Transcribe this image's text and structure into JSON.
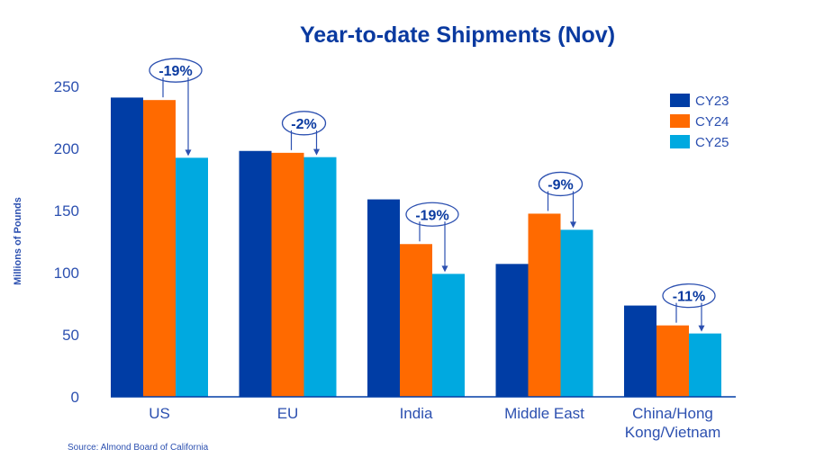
{
  "chart_data": {
    "type": "bar",
    "title": "Year-to-date Shipments (Nov)",
    "xlabel": "",
    "ylabel": "Millions of Pounds",
    "ylim": [
      0,
      250
    ],
    "yticks": [
      0,
      50,
      100,
      150,
      200,
      250
    ],
    "grid": false,
    "legend_position": "top-right",
    "categories": [
      "US",
      "EU",
      "India",
      "Middle East",
      "China/Hong Kong/Vietnam"
    ],
    "category_lines": [
      [
        "US"
      ],
      [
        "EU"
      ],
      [
        "India"
      ],
      [
        "Middle East"
      ],
      [
        "China/Hong",
        "Kong/Vietnam"
      ]
    ],
    "series": [
      {
        "name": "CY23",
        "color": "#003da5",
        "values": [
          241,
          198,
          159,
          107,
          73.5
        ]
      },
      {
        "name": "CY24",
        "color": "#ff6a00",
        "values": [
          239,
          196.5,
          123,
          147.5,
          57.5
        ]
      },
      {
        "name": "CY25",
        "color": "#00a9e0",
        "values": [
          192.5,
          193,
          99,
          134.5,
          51
        ]
      }
    ],
    "annotations": [
      {
        "category": "US",
        "label": "-19%",
        "from": "CY24",
        "to": "CY25"
      },
      {
        "category": "EU",
        "label": "-2%",
        "from": "CY24",
        "to": "CY25"
      },
      {
        "category": "India",
        "label": "-19%",
        "from": "CY24",
        "to": "CY25"
      },
      {
        "category": "Middle East",
        "label": "-9%",
        "from": "CY24",
        "to": "CY25"
      },
      {
        "category": "China/Hong Kong/Vietnam",
        "label": "-11%",
        "from": "CY24",
        "to": "CY25"
      }
    ],
    "source": "Source: Almond Board of California"
  },
  "colors": {
    "text": "#2c50b0",
    "title": "#0a3aa0",
    "axis": "#003da5"
  }
}
